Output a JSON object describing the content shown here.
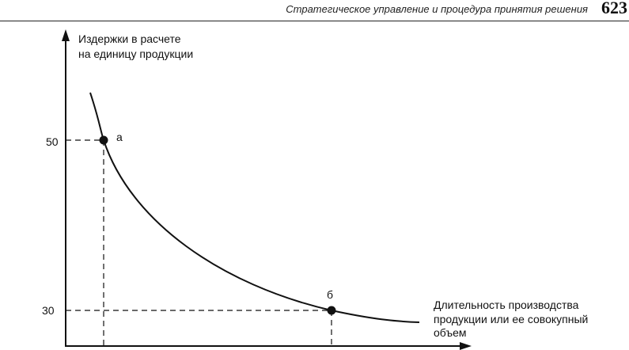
{
  "header": {
    "running_title": "Стратегическое управление и процедура принятия решения",
    "page_number": "623"
  },
  "chart_data": {
    "type": "line",
    "ylabel_lines": [
      "Издержки в расчете",
      "на единицу продукции"
    ],
    "xlabel_lines": [
      "Длительность производства",
      "продукции или ее совокупный",
      "объем"
    ],
    "y_ticks": [
      50,
      30
    ],
    "points": [
      {
        "label": "а",
        "y": 50
      },
      {
        "label": "б",
        "y": 30
      }
    ],
    "grid": false
  }
}
